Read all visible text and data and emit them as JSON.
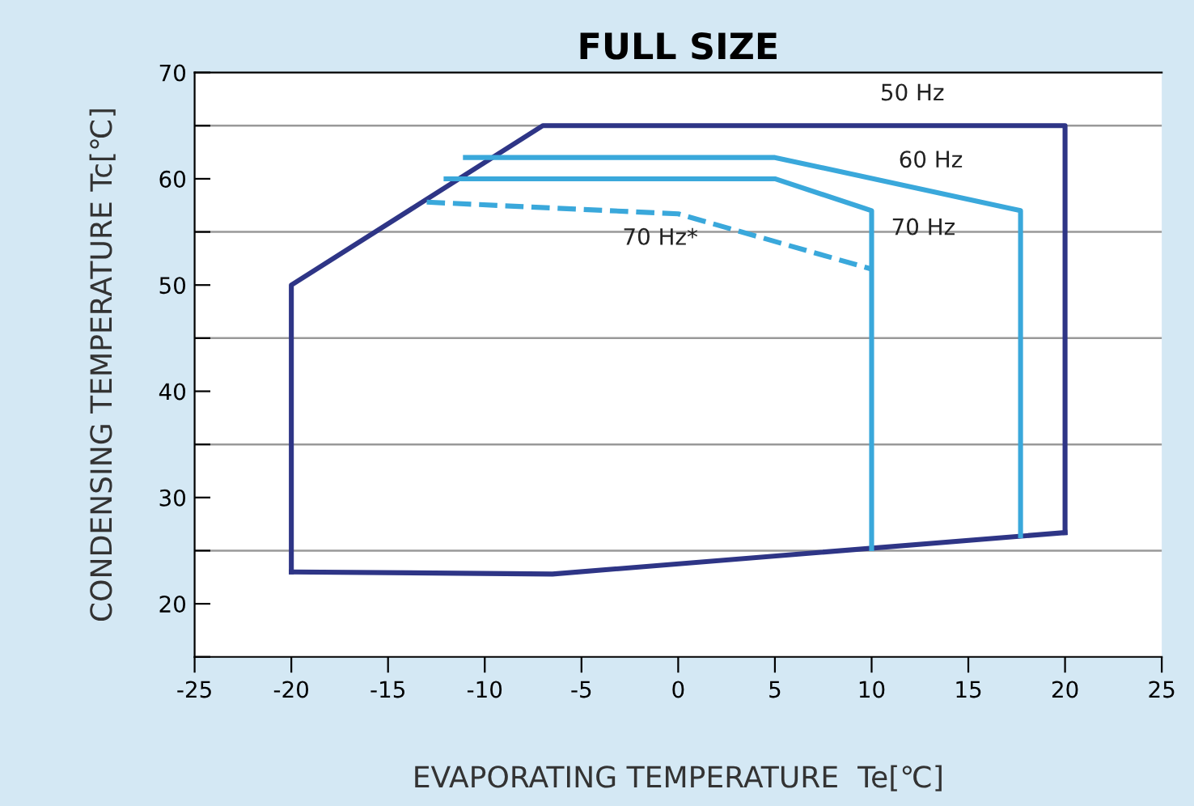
{
  "chart_data": {
    "type": "line",
    "title": "FULL SIZE",
    "xlabel": "EVAPORATING TEMPERATURE  Te[℃]",
    "ylabel": "CONDENSING TEMPERATURE Tc[℃]",
    "series": [
      {
        "name": "50 Hz",
        "color": "#2e3586",
        "x": [
          -20,
          -20,
          -7,
          20,
          20
        ],
        "values": [
          23,
          50,
          65,
          65,
          26.7
        ]
      },
      {
        "color": "#2e3586",
        "x": [
          -20,
          -6.5,
          20
        ],
        "values": [
          23,
          22.8,
          26.7
        ]
      },
      {
        "name": "60 Hz",
        "color": "#3aa8db",
        "x": [
          -11,
          5,
          17.7,
          17.7
        ],
        "values": [
          62,
          62,
          57,
          26.4
        ]
      },
      {
        "name": "70 Hz",
        "color": "#3aa8db",
        "x": [
          -12,
          5,
          10,
          10
        ],
        "values": [
          60,
          60,
          57,
          25.2
        ]
      },
      {
        "name": "70 Hz*",
        "color": "#3aa8db",
        "line_style": "dashed",
        "x": [
          -13,
          0,
          10
        ],
        "values": [
          57.8,
          56.7,
          51.5
        ]
      }
    ],
    "xlim": [
      -25,
      25
    ],
    "ylim": [
      15,
      70
    ],
    "xticks": [
      -25,
      -20,
      -15,
      -10,
      -5,
      0,
      5,
      10,
      15,
      20,
      25
    ],
    "yticks": [
      {
        "value": 15,
        "label": null
      },
      20,
      {
        "value": 25,
        "label": null
      },
      30,
      {
        "value": 35,
        "label": null
      },
      40,
      {
        "value": 45,
        "label": null
      },
      50,
      {
        "value": 55,
        "label": null
      },
      60,
      {
        "value": 65,
        "label": null
      },
      70
    ],
    "grid": "y",
    "line_style": "solid",
    "marker": "none"
  }
}
